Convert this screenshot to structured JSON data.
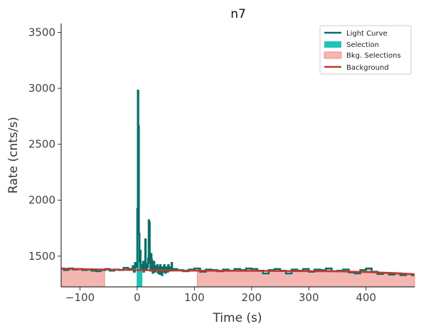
{
  "chart_data": {
    "type": "line",
    "title": "n7",
    "xlabel": "Time (s)",
    "ylabel": "Rate (cnts/s)",
    "xlim": [
      -133,
      485
    ],
    "ylim": [
      1225,
      3580
    ],
    "xticks": [
      -100,
      0,
      100,
      200,
      300,
      400
    ],
    "xtick_labels": [
      "−100",
      "0",
      "100",
      "200",
      "300",
      "400"
    ],
    "yticks": [
      1500,
      2000,
      2500,
      3000,
      3500
    ],
    "ytick_labels": [
      "1500",
      "2000",
      "2500",
      "3000",
      "3500"
    ],
    "legend_position": "top-right",
    "colors": {
      "light_curve": "#0b6e69",
      "selection": "#1fc4b6",
      "bkg_selection": "#f4b6b0",
      "bkg_selection_edge": "#e8928a",
      "background": "#c0392b"
    },
    "series": [
      {
        "name": "Light Curve",
        "type": "step",
        "x": [
          -133,
          -128,
          -120,
          -112,
          -104,
          -96,
          -88,
          -80,
          -72,
          -64,
          -56,
          -48,
          -40,
          -32,
          -24,
          -16,
          -8,
          -6,
          -4,
          -2,
          0,
          1,
          2,
          3,
          4,
          5,
          6,
          7,
          8,
          9,
          10,
          11,
          12,
          13,
          14,
          15,
          16,
          17,
          18,
          19,
          20,
          21,
          22,
          23,
          24,
          25,
          26,
          27,
          28,
          29,
          30,
          31,
          32,
          33,
          34,
          35,
          36,
          37,
          38,
          39,
          40,
          41,
          42,
          43,
          44,
          45,
          46,
          47,
          48,
          49,
          50,
          51,
          52,
          53,
          54,
          55,
          56,
          57,
          58,
          59,
          60,
          61,
          62,
          70,
          80,
          90,
          100,
          110,
          120,
          130,
          140,
          150,
          160,
          170,
          180,
          190,
          200,
          210,
          220,
          230,
          240,
          250,
          260,
          270,
          280,
          290,
          300,
          310,
          320,
          330,
          340,
          350,
          360,
          370,
          380,
          390,
          400,
          410,
          420,
          430,
          440,
          450,
          460,
          470,
          480
        ],
        "y": [
          1390,
          1375,
          1390,
          1380,
          1385,
          1375,
          1380,
          1370,
          1365,
          1375,
          1385,
          1370,
          1380,
          1375,
          1395,
          1385,
          1410,
          1360,
          1440,
          1400,
          1920,
          2980,
          2660,
          1700,
          1450,
          1550,
          1400,
          1380,
          1420,
          1380,
          1450,
          1360,
          1420,
          1380,
          1650,
          1410,
          1380,
          1430,
          1400,
          1480,
          1820,
          1800,
          1440,
          1370,
          1520,
          1470,
          1380,
          1350,
          1420,
          1450,
          1380,
          1360,
          1410,
          1390,
          1380,
          1420,
          1350,
          1400,
          1380,
          1340,
          1420,
          1360,
          1400,
          1330,
          1400,
          1380,
          1360,
          1420,
          1380,
          1350,
          1390,
          1400,
          1380,
          1360,
          1420,
          1380,
          1370,
          1400,
          1390,
          1380,
          1440,
          1370,
          1385,
          1375,
          1365,
          1380,
          1390,
          1360,
          1380,
          1375,
          1365,
          1380,
          1370,
          1385,
          1375,
          1390,
          1385,
          1370,
          1345,
          1375,
          1385,
          1370,
          1345,
          1380,
          1370,
          1385,
          1360,
          1380,
          1375,
          1390,
          1365,
          1370,
          1380,
          1355,
          1345,
          1375,
          1390,
          1360,
          1340,
          1350,
          1335,
          1345,
          1330,
          1340,
          1330
        ]
      },
      {
        "name": "Selection",
        "type": "band",
        "x": [
          -1,
          9
        ]
      },
      {
        "name": "Bkg. Selections",
        "type": "band",
        "ranges": [
          [
            -133,
            -57
          ],
          [
            105,
            485
          ]
        ]
      },
      {
        "name": "Background",
        "type": "line",
        "x": [
          -133,
          -100,
          -50,
          0,
          50,
          100,
          150,
          200,
          250,
          300,
          350,
          400,
          450,
          485
        ],
        "y": [
          1388,
          1384,
          1379,
          1375,
          1372,
          1370,
          1369,
          1368,
          1367,
          1366,
          1364,
          1358,
          1348,
          1338
        ]
      }
    ]
  }
}
